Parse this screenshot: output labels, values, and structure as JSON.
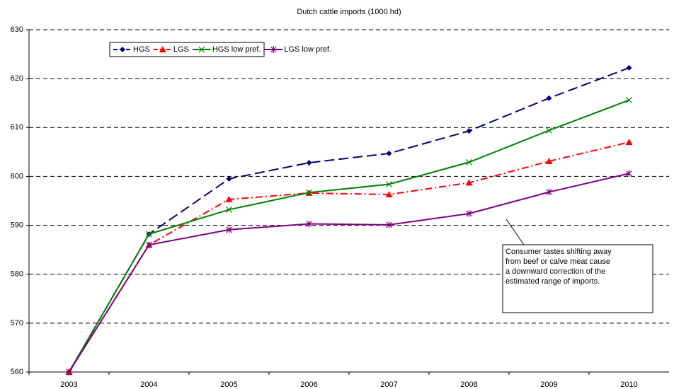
{
  "chart_data": {
    "type": "line",
    "title": "Dutch cattle imports (1000 hd)",
    "categories": [
      "2003",
      "2004",
      "2005",
      "2006",
      "2007",
      "2008",
      "2009",
      "2010"
    ],
    "series": [
      {
        "name": "HGS",
        "color": "#000080",
        "dash": "14 6",
        "marker": "diamond",
        "values": [
          560,
          588.2,
          599.5,
          602.8,
          604.7,
          609.3,
          616,
          622.2
        ]
      },
      {
        "name": "LGS",
        "color": "#ff0000",
        "dash": "10 4 2 4",
        "marker": "triangle",
        "values": [
          560,
          586,
          595.3,
          596.6,
          596.3,
          598.7,
          603.1,
          607
        ]
      },
      {
        "name": "HGS low pref.",
        "color": "#008000",
        "dash": "none",
        "marker": "x",
        "values": [
          560,
          588.2,
          593.2,
          596.7,
          598.4,
          602.9,
          609.4,
          615.6
        ]
      },
      {
        "name": "LGS low pref.",
        "color": "#800080",
        "dash": "none",
        "marker": "star",
        "values": [
          560,
          586,
          589.1,
          590.3,
          590.1,
          592.4,
          596.8,
          600.6
        ]
      }
    ],
    "ylim": [
      560,
      630
    ],
    "yticks": [
      560,
      570,
      580,
      590,
      600,
      610,
      620,
      630
    ],
    "grid": true,
    "annotation": [
      "Consumer tastes shifting away",
      "from beef or calve meat cause",
      "a downward correction of the",
      "estimated range of imports."
    ]
  }
}
